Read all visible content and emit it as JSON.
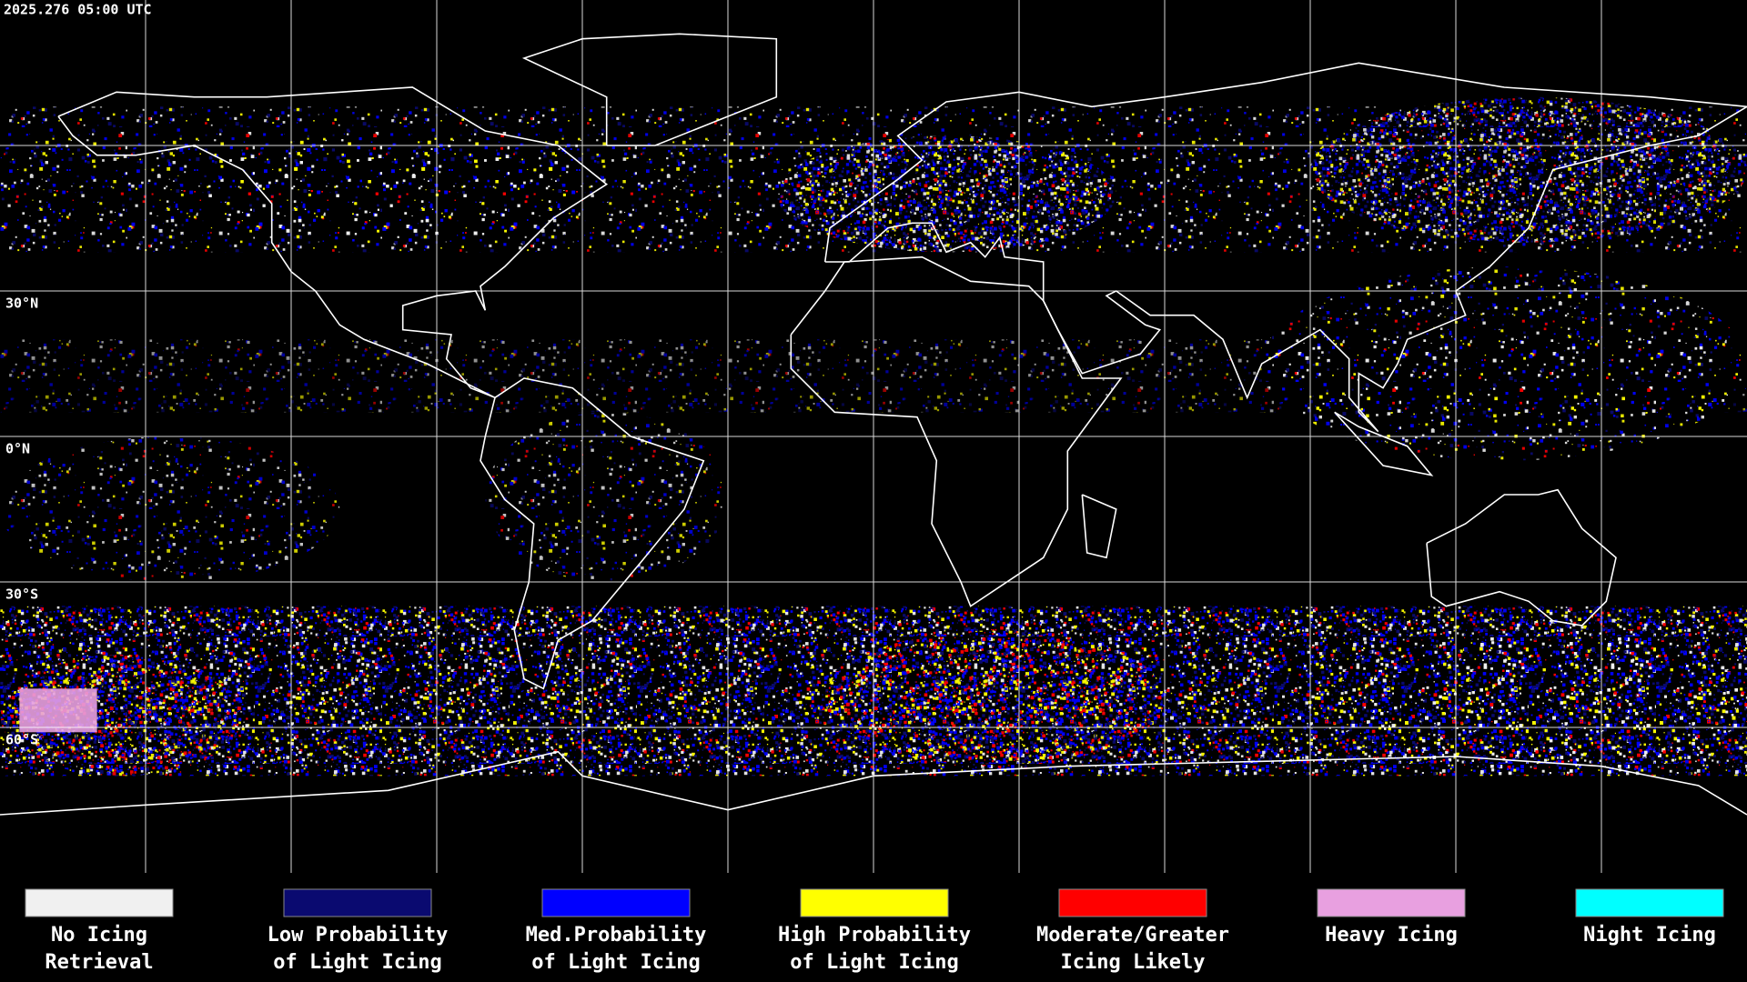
{
  "header": {
    "timestamp": "2025.276 05:00 UTC"
  },
  "map": {
    "lat_labels": [
      "30°N",
      "0°N",
      "30°S",
      "60°S"
    ]
  },
  "legend": {
    "items": [
      {
        "lines": [
          "No Icing",
          "Retrieval"
        ],
        "color": "#f0f0f0"
      },
      {
        "lines": [
          "Low Probability",
          "of Light Icing"
        ],
        "color": "#0a0a70"
      },
      {
        "lines": [
          "Med.Probability",
          "of Light Icing"
        ],
        "color": "#0000ff"
      },
      {
        "lines": [
          "High Probability",
          "of Light Icing"
        ],
        "color": "#ffff00"
      },
      {
        "lines": [
          "Moderate/Greater",
          "Icing Likely"
        ],
        "color": "#ff0000"
      },
      {
        "lines": [
          "Heavy Icing"
        ],
        "color": "#e8a0e0"
      },
      {
        "lines": [
          "Night Icing"
        ],
        "color": "#00ffff"
      }
    ]
  }
}
